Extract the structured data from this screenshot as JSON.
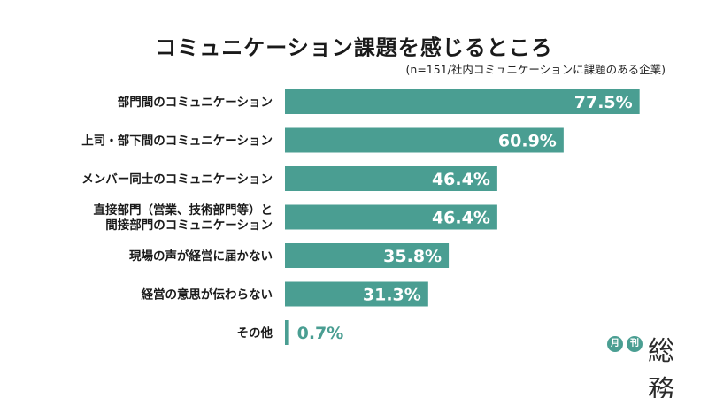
{
  "chart_data": {
    "type": "bar",
    "orientation": "horizontal",
    "title": "コミュニケーション課題を感じるところ",
    "subtitle": "(n=151/社内コミュニケーションに課題のある企業)",
    "categories": [
      "部門間のコミュニケーション",
      "上司・部下間のコミュニケーション",
      "メンバー同士のコミュニケーション",
      "直接部門（営業、技術部門等）と\n間接部門のコミュニケーション",
      "現場の声が経営に届かない",
      "経営の意思が伝わらない",
      "その他"
    ],
    "values": [
      77.5,
      60.9,
      46.4,
      46.4,
      35.8,
      31.3,
      0.7
    ],
    "value_labels": [
      "77.5%",
      "60.9%",
      "46.4%",
      "46.4%",
      "35.8%",
      "31.3%",
      "0.7%"
    ],
    "xlim": [
      0,
      100
    ],
    "grid": false,
    "legend": "none",
    "bar_color": "#4a9e92"
  },
  "logo": {
    "badge1": "月",
    "badge2": "刊",
    "word": "総務"
  }
}
